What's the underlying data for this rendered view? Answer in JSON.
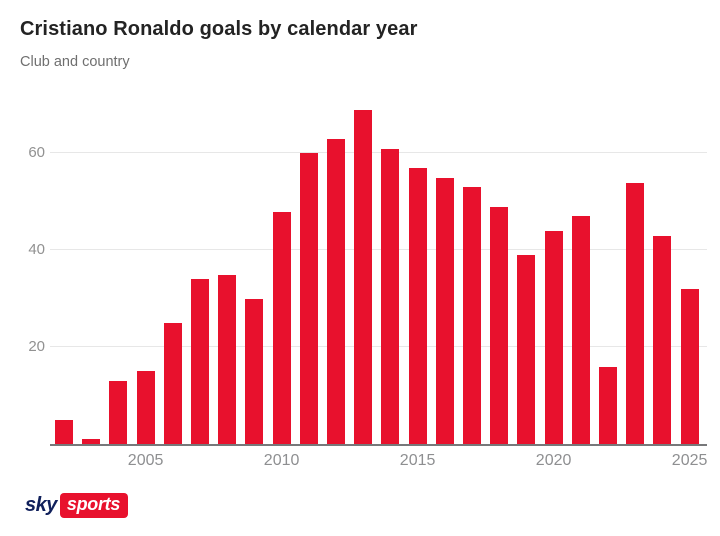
{
  "header": {
    "title": "Cristiano Ronaldo goals by calendar year",
    "subtitle": "Club and country"
  },
  "branding": {
    "logo_sky": "sky",
    "logo_sports": "sports"
  },
  "colors": {
    "bar_red": "#e8112d",
    "logo_navy": "#10205b",
    "logo_box_red": "#e8112d",
    "gridline": "#e7e7e7",
    "axis_line": "#77787a",
    "tick_label": "#919191",
    "title_text": "#232323",
    "subtitle_text": "#6f6f6f"
  },
  "chart_data": {
    "type": "bar",
    "title": "Cristiano Ronaldo goals by calendar year",
    "subtitle": "Club and country",
    "categories": [
      2002,
      2003,
      2004,
      2005,
      2006,
      2007,
      2008,
      2009,
      2010,
      2011,
      2012,
      2013,
      2014,
      2015,
      2016,
      2017,
      2018,
      2019,
      2020,
      2021,
      2022,
      2023,
      2024,
      2025
    ],
    "values": [
      5,
      1,
      13,
      15,
      25,
      34,
      35,
      30,
      48,
      60,
      63,
      69,
      61,
      57,
      55,
      53,
      49,
      39,
      44,
      47,
      16,
      54,
      43,
      32
    ],
    "xlabel": "",
    "ylabel": "",
    "ylim": [
      0,
      70
    ],
    "yticks": [
      20,
      40,
      60
    ],
    "xticks": [
      2005,
      2010,
      2015,
      2020,
      2025
    ],
    "grid": "horizontal-only",
    "legend": "none",
    "bar_color": "#e8112d"
  }
}
